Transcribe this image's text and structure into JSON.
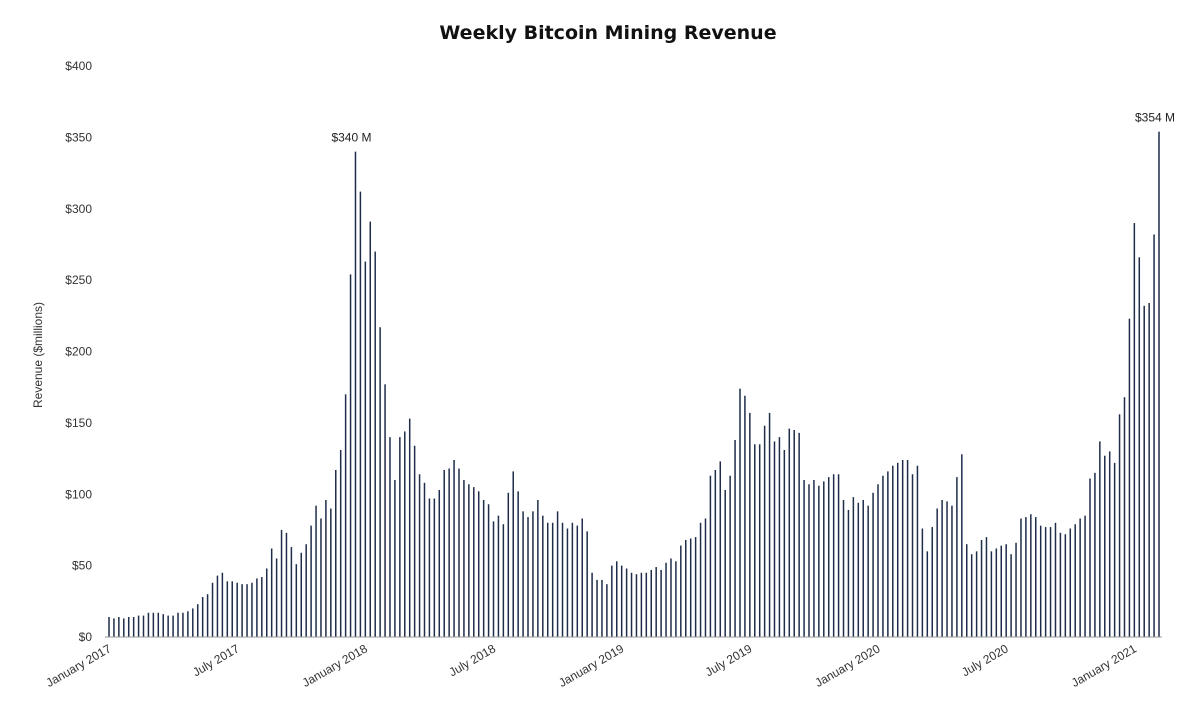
{
  "chart_data": {
    "type": "bar",
    "title": "Weekly Bitcoin Mining Revenue",
    "ylabel": "Revenue ($millions)",
    "xlabel": "",
    "ylim": [
      0,
      400
    ],
    "grid": false,
    "y_ticks": [
      "$0",
      "$50",
      "$100",
      "$150",
      "$200",
      "$250",
      "$300",
      "$350",
      "$400"
    ],
    "x_tick_labels": [
      "January 2017",
      "July 2017",
      "January 2018",
      "July 2018",
      "January 2019",
      "July 2019",
      "January 2020",
      "July 2020",
      "January 2021"
    ],
    "bar_color": "#1f2d4a",
    "series": [
      {
        "values": [
          14,
          13,
          14,
          13,
          14,
          14,
          15,
          15,
          17,
          17,
          17,
          16,
          15,
          15,
          17,
          17,
          18,
          20,
          23,
          28,
          30,
          38,
          43,
          45,
          39,
          39,
          38,
          37,
          37,
          38,
          41,
          42,
          48,
          62,
          55,
          75,
          73,
          63,
          51,
          59,
          65,
          78,
          92,
          83,
          96,
          90,
          117,
          131,
          170,
          254,
          340,
          312,
          263,
          291,
          270,
          217,
          177,
          140,
          110,
          140,
          144,
          153,
          134,
          114,
          108,
          97,
          97,
          103,
          117,
          118,
          124,
          118,
          110,
          107,
          105,
          102,
          96,
          93,
          81,
          85,
          79,
          101,
          116,
          102,
          88,
          84,
          88,
          96,
          85,
          80,
          80,
          88,
          80,
          76,
          80,
          78,
          83,
          74,
          45,
          40,
          40,
          37,
          50,
          53,
          50,
          48,
          45,
          44,
          45,
          45,
          47,
          49,
          47,
          52,
          55,
          53,
          64,
          68,
          69,
          70,
          80,
          83,
          113,
          117,
          123,
          103,
          113,
          138,
          174,
          169,
          157,
          135,
          135,
          148,
          157,
          137,
          140,
          131,
          146,
          145,
          143,
          110,
          107,
          110,
          106,
          109,
          112,
          114,
          114,
          96,
          89,
          98,
          94,
          96,
          92,
          101,
          107,
          113,
          116,
          120,
          122,
          124,
          124,
          114,
          120,
          76,
          60,
          77,
          90,
          96,
          95,
          92,
          112,
          128,
          65,
          58,
          60,
          68,
          70,
          60,
          62,
          64,
          65,
          58,
          66,
          83,
          84,
          86,
          84,
          78,
          77,
          77,
          80,
          73,
          72,
          76,
          79,
          83,
          85,
          111,
          115,
          137,
          127,
          130,
          122,
          156,
          168,
          223,
          290,
          266,
          232,
          234,
          282,
          354
        ]
      }
    ],
    "annotations": [
      {
        "text": "$340 M",
        "index": 50
      },
      {
        "text": "$354 M",
        "index": 213
      }
    ]
  }
}
